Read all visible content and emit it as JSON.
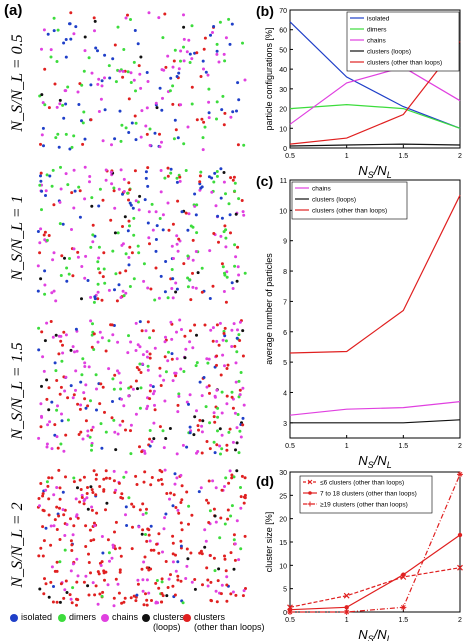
{
  "panel_a": {
    "letter": "(a)",
    "row_labels": [
      "N_S/N_L = 0.5",
      "N_S/N_L = 1",
      "N_S/N_L = 1.5",
      "N_S/N_L = 2"
    ],
    "legend": [
      {
        "label": "isolated",
        "color": "#1f3fc8"
      },
      {
        "label": "dimers",
        "color": "#3cdc3c"
      },
      {
        "label": "chains",
        "color": "#e040e0"
      },
      {
        "label": "clusters\n(loops)",
        "color": "#111111"
      },
      {
        "label": "clusters\n(other than loops)",
        "color": "#e02020"
      }
    ]
  },
  "chart_data": [
    {
      "panel": "(b)",
      "type": "line",
      "x": [
        0.5,
        1,
        1.5,
        2
      ],
      "xlabel": "N_S/N_L",
      "ylabel": "particle configurations [%]",
      "xlim": [
        0.5,
        2
      ],
      "ylim": [
        0,
        70
      ],
      "xticks": [
        "0.5",
        "1",
        "1.5",
        "2"
      ],
      "yticks": [
        "0",
        "10",
        "20",
        "30",
        "40",
        "50",
        "60",
        "70"
      ],
      "legend_position": "top-right",
      "series": [
        {
          "name": "isolated",
          "color": "#1f3fc8",
          "values": [
            64,
            36,
            21,
            10
          ]
        },
        {
          "name": "dimers",
          "color": "#3cdc3c",
          "values": [
            20,
            22,
            20,
            10
          ]
        },
        {
          "name": "chains",
          "color": "#e040e0",
          "values": [
            12,
            33,
            41,
            24
          ]
        },
        {
          "name": "clusters (loops)",
          "color": "#111111",
          "values": [
            1,
            1.5,
            2,
            1.5
          ]
        },
        {
          "name": "clusters (other than loops)",
          "color": "#e02020",
          "values": [
            2,
            5,
            17,
            54
          ]
        }
      ]
    },
    {
      "panel": "(c)",
      "type": "line",
      "x": [
        0.5,
        1,
        1.5,
        2
      ],
      "xlabel": "N_S/N_L",
      "ylabel": "average number of particles",
      "xlim": [
        0.5,
        2
      ],
      "ylim": [
        2.5,
        11
      ],
      "xticks": [
        "0.5",
        "1",
        "1.5",
        "2"
      ],
      "yticks": [
        "3",
        "4",
        "5",
        "6",
        "7",
        "8",
        "9",
        "10",
        "11"
      ],
      "legend_position": "top-left",
      "series": [
        {
          "name": "chains",
          "color": "#e040e0",
          "values": [
            3.25,
            3.45,
            3.5,
            3.7
          ]
        },
        {
          "name": "clusters (loops)",
          "color": "#111111",
          "values": [
            3,
            3,
            3,
            3.1
          ]
        },
        {
          "name": "clusters (other than loops)",
          "color": "#e02020",
          "values": [
            5.3,
            5.35,
            6.7,
            10.5
          ]
        }
      ]
    },
    {
      "panel": "(d)",
      "type": "line",
      "x": [
        0.5,
        1,
        1.5,
        2
      ],
      "xlabel": "N_S/N_L",
      "ylabel": "cluster size [%]",
      "xlim": [
        0.5,
        2
      ],
      "ylim": [
        0,
        30
      ],
      "xticks": [
        "0.5",
        "1",
        "1.5",
        "2"
      ],
      "yticks": [
        "0",
        "5",
        "10",
        "15",
        "20",
        "25",
        "30"
      ],
      "legend_position": "top-left",
      "series": [
        {
          "name": "≤6 clusters (other than loops)",
          "color": "#e02020",
          "style": "dashed",
          "marker": "x",
          "values": [
            1,
            3.5,
            7.5,
            9.5
          ]
        },
        {
          "name": "7 to 18 clusters (other than loops)",
          "color": "#e02020",
          "style": "solid",
          "marker": "o",
          "values": [
            0.5,
            1,
            8,
            16.5
          ]
        },
        {
          "name": "≥19 clusters (other than loops)",
          "color": "#e02020",
          "style": "dashdot",
          "marker": "*",
          "values": [
            0,
            0,
            1,
            29.5
          ]
        }
      ]
    }
  ]
}
